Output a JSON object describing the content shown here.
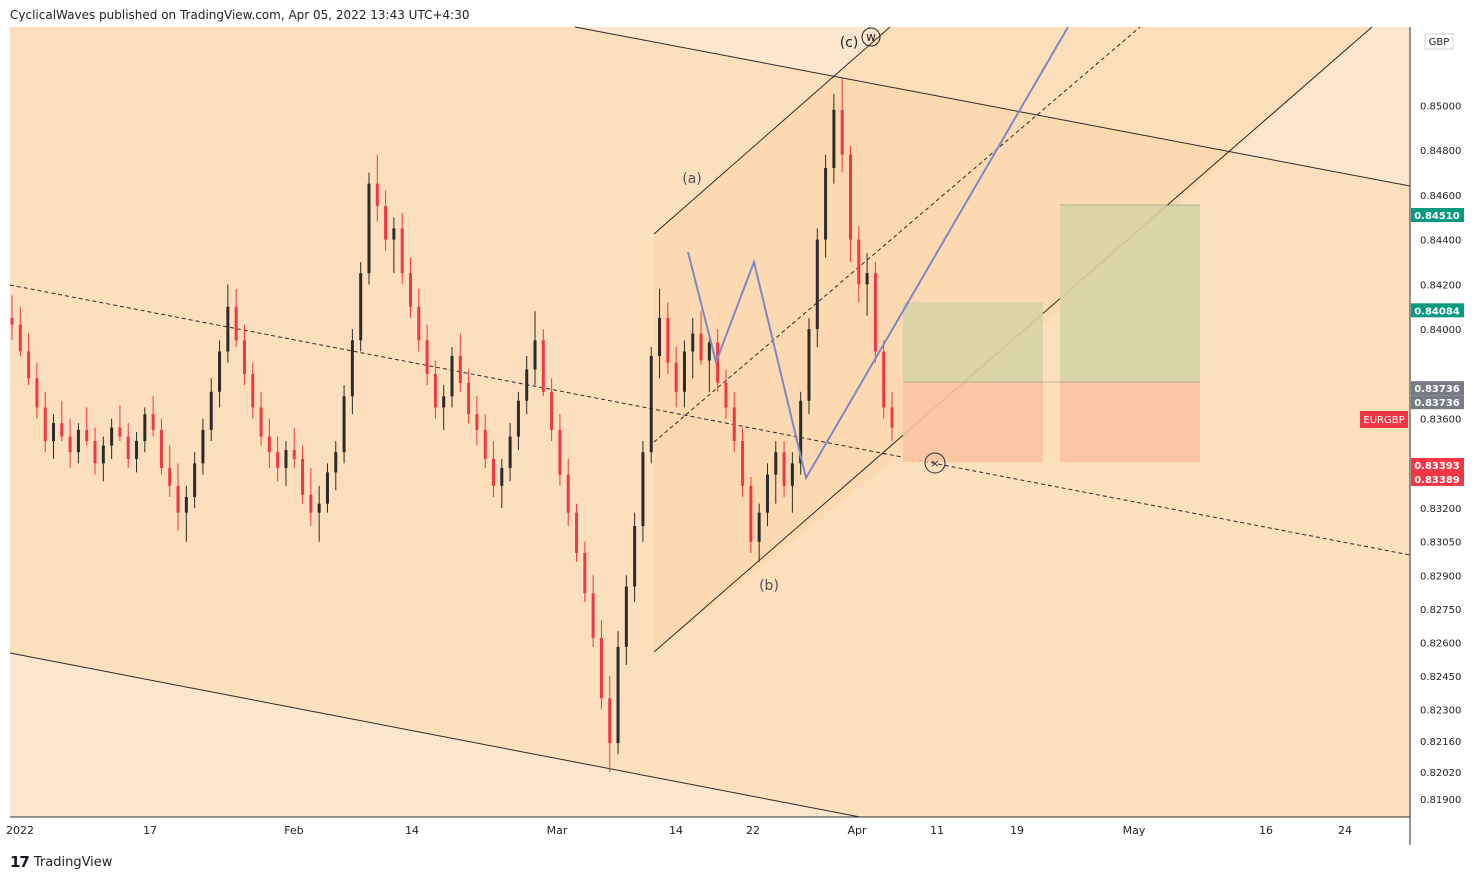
{
  "header": {
    "published_text": "CyclicalWaves published on TradingView.com, Apr 05, 2022 13:43 UTC+4:30"
  },
  "footer": {
    "brand": "TradingView",
    "logo_icon": "tradingview-logo-icon"
  },
  "chart_data": {
    "type": "candlestick",
    "symbol": "EURGBP",
    "currency": "GBP",
    "y_range": [
      0.8182,
      0.8535
    ],
    "y_ticks": [
      "0.85000",
      "0.84800",
      "0.84600",
      "0.84400",
      "0.84200",
      "0.84000",
      "0.83600",
      "0.83200",
      "0.83050",
      "0.82900",
      "0.82750",
      "0.82600",
      "0.82450",
      "0.82300",
      "0.82160",
      "0.82020",
      "0.81900"
    ],
    "x_ticks": [
      "2022",
      "17",
      "Feb",
      "14",
      "Mar",
      "14",
      "22",
      "Apr",
      "11",
      "19",
      "May",
      "16",
      "24"
    ],
    "price_labels": [
      {
        "text": "0.84510",
        "value": 0.8451,
        "color": "#089981"
      },
      {
        "text": "0.84084",
        "value": 0.84084,
        "color": "#089981"
      },
      {
        "text": "0.83736",
        "value": 0.83736,
        "color": "#787b86"
      },
      {
        "text": "0.83736",
        "value": 0.83736,
        "color": "#787b86"
      },
      {
        "text": "0.83393",
        "value": 0.83393,
        "color": "#f23645"
      },
      {
        "text": "0.83389",
        "value": 0.83389,
        "color": "#f23645"
      }
    ],
    "symbol_label": {
      "text": "EURGBP",
      "value": 0.8358,
      "color": "#f23645"
    },
    "wave_labels": [
      "(a)",
      "(b)",
      "(c)",
      "w"
    ],
    "colors": {
      "up": "#2b2b2b",
      "down": "#f23645",
      "background": "#fbe2c9",
      "channel": "#fbd8b0",
      "profit": "#d6d3a6",
      "loss": "#f8c4a2",
      "path": "#7e88c6"
    },
    "bars": [
      [
        0.8405,
        0.8415,
        0.8395,
        0.8402
      ],
      [
        0.8402,
        0.841,
        0.8388,
        0.839
      ],
      [
        0.839,
        0.8398,
        0.8375,
        0.8378
      ],
      [
        0.8378,
        0.8385,
        0.836,
        0.8365
      ],
      [
        0.8365,
        0.8372,
        0.8345,
        0.835
      ],
      [
        0.835,
        0.8362,
        0.8342,
        0.8358
      ],
      [
        0.8358,
        0.8368,
        0.835,
        0.8352
      ],
      [
        0.8352,
        0.836,
        0.8338,
        0.8345
      ],
      [
        0.8345,
        0.8358,
        0.834,
        0.8355
      ],
      [
        0.8355,
        0.8365,
        0.8348,
        0.835
      ],
      [
        0.835,
        0.8356,
        0.8335,
        0.834
      ],
      [
        0.834,
        0.8352,
        0.8332,
        0.8348
      ],
      [
        0.8348,
        0.836,
        0.8342,
        0.8356
      ],
      [
        0.8356,
        0.8366,
        0.835,
        0.8352
      ],
      [
        0.8352,
        0.8358,
        0.8338,
        0.8342
      ],
      [
        0.8342,
        0.8354,
        0.8336,
        0.835
      ],
      [
        0.835,
        0.8365,
        0.8345,
        0.8362
      ],
      [
        0.8362,
        0.837,
        0.8352,
        0.8355
      ],
      [
        0.8355,
        0.836,
        0.8335,
        0.8338
      ],
      [
        0.8338,
        0.8348,
        0.8325,
        0.833
      ],
      [
        0.833,
        0.834,
        0.831,
        0.8318
      ],
      [
        0.8318,
        0.833,
        0.8305,
        0.8325
      ],
      [
        0.8325,
        0.8345,
        0.832,
        0.834
      ],
      [
        0.834,
        0.836,
        0.8335,
        0.8355
      ],
      [
        0.8355,
        0.8378,
        0.835,
        0.8372
      ],
      [
        0.8372,
        0.8395,
        0.8365,
        0.839
      ],
      [
        0.839,
        0.842,
        0.8385,
        0.841
      ],
      [
        0.841,
        0.8418,
        0.8392,
        0.8395
      ],
      [
        0.8395,
        0.8402,
        0.8375,
        0.838
      ],
      [
        0.838,
        0.8385,
        0.836,
        0.8365
      ],
      [
        0.8365,
        0.8372,
        0.8348,
        0.8352
      ],
      [
        0.8352,
        0.836,
        0.8338,
        0.8345
      ],
      [
        0.8345,
        0.8352,
        0.8332,
        0.8338
      ],
      [
        0.8338,
        0.835,
        0.833,
        0.8346
      ],
      [
        0.8346,
        0.8356,
        0.8338,
        0.8342
      ],
      [
        0.8342,
        0.8348,
        0.8322,
        0.8326
      ],
      [
        0.8326,
        0.8338,
        0.8312,
        0.8318
      ],
      [
        0.8318,
        0.833,
        0.8305,
        0.8322
      ],
      [
        0.8322,
        0.834,
        0.8318,
        0.8336
      ],
      [
        0.8336,
        0.835,
        0.8328,
        0.8345
      ],
      [
        0.8345,
        0.8375,
        0.834,
        0.837
      ],
      [
        0.837,
        0.84,
        0.8362,
        0.8395
      ],
      [
        0.8395,
        0.843,
        0.839,
        0.8425
      ],
      [
        0.8425,
        0.847,
        0.842,
        0.8465
      ],
      [
        0.8465,
        0.8478,
        0.8448,
        0.8455
      ],
      [
        0.8455,
        0.8462,
        0.8435,
        0.844
      ],
      [
        0.844,
        0.845,
        0.8425,
        0.8445
      ],
      [
        0.8445,
        0.8452,
        0.842,
        0.8425
      ],
      [
        0.8425,
        0.8432,
        0.8405,
        0.841
      ],
      [
        0.841,
        0.8418,
        0.839,
        0.8395
      ],
      [
        0.8395,
        0.8402,
        0.8375,
        0.838
      ],
      [
        0.838,
        0.8386,
        0.836,
        0.8365
      ],
      [
        0.8365,
        0.8375,
        0.8355,
        0.837
      ],
      [
        0.837,
        0.8392,
        0.8365,
        0.8388
      ],
      [
        0.8388,
        0.8398,
        0.8372,
        0.8376
      ],
      [
        0.8376,
        0.8382,
        0.8358,
        0.8362
      ],
      [
        0.8362,
        0.837,
        0.8348,
        0.8355
      ],
      [
        0.8355,
        0.8362,
        0.8338,
        0.8342
      ],
      [
        0.8342,
        0.835,
        0.8325,
        0.833
      ],
      [
        0.833,
        0.8342,
        0.832,
        0.8338
      ],
      [
        0.8338,
        0.8358,
        0.8332,
        0.8352
      ],
      [
        0.8352,
        0.8372,
        0.8346,
        0.8368
      ],
      [
        0.8368,
        0.8388,
        0.8362,
        0.8382
      ],
      [
        0.8382,
        0.8408,
        0.8375,
        0.8395
      ],
      [
        0.8395,
        0.84,
        0.837,
        0.8372
      ],
      [
        0.8372,
        0.8378,
        0.835,
        0.8355
      ],
      [
        0.8355,
        0.8362,
        0.833,
        0.8335
      ],
      [
        0.8335,
        0.8342,
        0.8312,
        0.8318
      ],
      [
        0.8318,
        0.8322,
        0.8296,
        0.83
      ],
      [
        0.83,
        0.8305,
        0.8278,
        0.8282
      ],
      [
        0.8282,
        0.829,
        0.8258,
        0.8262
      ],
      [
        0.8262,
        0.827,
        0.823,
        0.8235
      ],
      [
        0.8235,
        0.8245,
        0.8202,
        0.8215
      ],
      [
        0.8215,
        0.8265,
        0.821,
        0.8258
      ],
      [
        0.8258,
        0.829,
        0.825,
        0.8285
      ],
      [
        0.8285,
        0.8318,
        0.8278,
        0.8312
      ],
      [
        0.8312,
        0.835,
        0.8305,
        0.8345
      ],
      [
        0.8345,
        0.8392,
        0.834,
        0.8388
      ],
      [
        0.8388,
        0.8418,
        0.8378,
        0.8405
      ],
      [
        0.8405,
        0.8412,
        0.838,
        0.8385
      ],
      [
        0.8385,
        0.8392,
        0.8365,
        0.8372
      ],
      [
        0.8372,
        0.8395,
        0.8365,
        0.839
      ],
      [
        0.839,
        0.8405,
        0.8378,
        0.8398
      ],
      [
        0.8398,
        0.8408,
        0.8384,
        0.8386
      ],
      [
        0.8386,
        0.8398,
        0.8372,
        0.8394
      ],
      [
        0.8394,
        0.84,
        0.8372,
        0.8376
      ],
      [
        0.8376,
        0.8382,
        0.836,
        0.8365
      ],
      [
        0.8365,
        0.8372,
        0.8345,
        0.835
      ],
      [
        0.835,
        0.8356,
        0.8325,
        0.833
      ],
      [
        0.833,
        0.8334,
        0.83,
        0.8305
      ],
      [
        0.8305,
        0.8322,
        0.8296,
        0.8318
      ],
      [
        0.8318,
        0.834,
        0.8312,
        0.8335
      ],
      [
        0.8335,
        0.835,
        0.8322,
        0.8345
      ],
      [
        0.8345,
        0.835,
        0.8325,
        0.833
      ],
      [
        0.833,
        0.8345,
        0.8318,
        0.834
      ],
      [
        0.834,
        0.8372,
        0.8335,
        0.8368
      ],
      [
        0.8368,
        0.8405,
        0.8362,
        0.84
      ],
      [
        0.84,
        0.8445,
        0.8392,
        0.844
      ],
      [
        0.844,
        0.8478,
        0.8432,
        0.8472
      ],
      [
        0.8472,
        0.8505,
        0.8465,
        0.8498
      ],
      [
        0.8498,
        0.8512,
        0.847,
        0.8478
      ],
      [
        0.8478,
        0.8482,
        0.843,
        0.844
      ],
      [
        0.844,
        0.8446,
        0.8412,
        0.842
      ],
      [
        0.842,
        0.8434,
        0.8406,
        0.8425
      ],
      [
        0.8425,
        0.843,
        0.8385,
        0.839
      ],
      [
        0.839,
        0.8395,
        0.836,
        0.8365
      ],
      [
        0.8365,
        0.8372,
        0.835,
        0.8356
      ]
    ]
  }
}
